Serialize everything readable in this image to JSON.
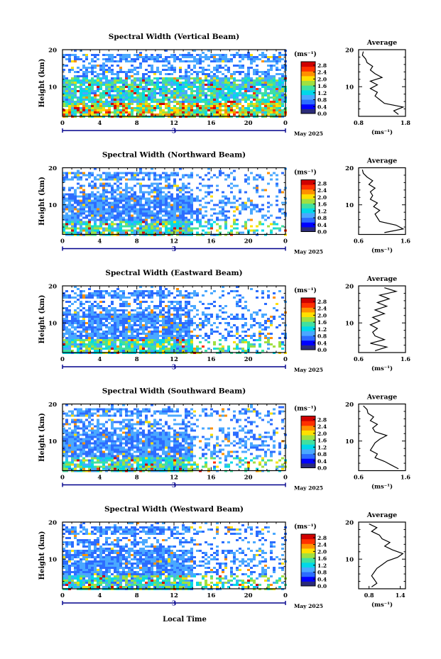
{
  "figure": {
    "xaxis_label": "Local Time"
  },
  "colorbar": {
    "unit": "(ms⁻¹)",
    "ticks": [
      "0.0",
      "0.4",
      "0.8",
      "1.2",
      "1.6",
      "2.0",
      "2.4",
      "2.8"
    ],
    "colors": [
      "#2b2b7a",
      "#0000ff",
      "#2c6cff",
      "#4aa8ff",
      "#00d8e8",
      "#40e0a0",
      "#a0e040",
      "#ffe000",
      "#ff9000",
      "#ff3000",
      "#d00000"
    ]
  },
  "chart_data": [
    {
      "type": "heatmap",
      "title": "Spectral Width (Vertical Beam)",
      "xlabel": "",
      "ylabel": "Height (km)",
      "xlim": [
        0,
        24
      ],
      "xticks": [
        "0",
        "4",
        "8",
        "12",
        "16",
        "20",
        "0"
      ],
      "ylim": [
        2,
        20
      ],
      "yticks": [
        "10",
        "20"
      ],
      "date_label": "May 2025",
      "day_label": "3",
      "zlabel": "(ms⁻¹)",
      "zlim": [
        0,
        3.0
      ],
      "profile": {
        "title": "Average",
        "xlabel": "(ms⁻¹)",
        "xticks": [
          "0.8",
          "1.8"
        ],
        "xlim": [
          0.8,
          1.8
        ],
        "points": [
          [
            1.65,
            2.5
          ],
          [
            1.55,
            3.5
          ],
          [
            1.75,
            4.5
          ],
          [
            1.35,
            5.5
          ],
          [
            1.25,
            6.5
          ],
          [
            1.15,
            7.5
          ],
          [
            1.2,
            8.5
          ],
          [
            1.05,
            9.5
          ],
          [
            1.2,
            10.5
          ],
          [
            1.05,
            11.5
          ],
          [
            1.3,
            12.5
          ],
          [
            1.15,
            13.5
          ],
          [
            1.05,
            14.5
          ],
          [
            1.1,
            15.5
          ],
          [
            0.98,
            16.5
          ],
          [
            0.95,
            17.5
          ],
          [
            0.88,
            18.5
          ],
          [
            0.9,
            19.5
          ]
        ]
      }
    },
    {
      "type": "heatmap",
      "title": "Spectral Width (Northward Beam)",
      "xlabel": "",
      "ylabel": "Height (km)",
      "xlim": [
        0,
        24
      ],
      "xticks": [
        "0",
        "4",
        "8",
        "12",
        "16",
        "20",
        "0"
      ],
      "ylim": [
        2,
        20
      ],
      "yticks": [
        "10",
        "20"
      ],
      "date_label": "May 2025",
      "day_label": "3",
      "zlabel": "(ms⁻¹)",
      "zlim": [
        0,
        3.0
      ],
      "profile": {
        "title": "Average",
        "xlabel": "(ms⁻¹)",
        "xticks": [
          "0.6",
          "1.6"
        ],
        "xlim": [
          0.6,
          1.6
        ],
        "points": [
          [
            1.15,
            2.5
          ],
          [
            1.55,
            3.5
          ],
          [
            1.4,
            4.5
          ],
          [
            1.05,
            5.5
          ],
          [
            1.0,
            6.5
          ],
          [
            0.95,
            7.5
          ],
          [
            1.05,
            8.5
          ],
          [
            0.92,
            9.5
          ],
          [
            1.0,
            10.5
          ],
          [
            0.85,
            11.5
          ],
          [
            0.9,
            12.5
          ],
          [
            0.85,
            13.5
          ],
          [
            0.95,
            14.5
          ],
          [
            0.82,
            15.5
          ],
          [
            0.9,
            16.5
          ],
          [
            0.78,
            17.5
          ],
          [
            0.7,
            18.5
          ],
          [
            0.68,
            19.5
          ]
        ]
      }
    },
    {
      "type": "heatmap",
      "title": "Spectral Width (Eastward Beam)",
      "xlabel": "",
      "ylabel": "Height (km)",
      "xlim": [
        0,
        24
      ],
      "xticks": [
        "0",
        "4",
        "8",
        "12",
        "16",
        "20",
        "0"
      ],
      "ylim": [
        2,
        20
      ],
      "yticks": [
        "10",
        "20"
      ],
      "date_label": "May 2025",
      "day_label": "3",
      "zlabel": "(ms⁻¹)",
      "zlim": [
        0,
        3.0
      ],
      "profile": {
        "title": "Average",
        "xlabel": "(ms⁻¹)",
        "xticks": [
          "0.6",
          "1.6"
        ],
        "xlim": [
          0.6,
          1.6
        ],
        "points": [
          [
            0.95,
            2.5
          ],
          [
            1.2,
            3.5
          ],
          [
            0.85,
            4.5
          ],
          [
            1.15,
            5.5
          ],
          [
            0.95,
            6.5
          ],
          [
            0.9,
            7.5
          ],
          [
            1.0,
            8.5
          ],
          [
            0.85,
            9.5
          ],
          [
            1.05,
            10.5
          ],
          [
            0.9,
            11.5
          ],
          [
            1.15,
            12.5
          ],
          [
            0.95,
            13.5
          ],
          [
            1.2,
            14.5
          ],
          [
            1.0,
            15.5
          ],
          [
            1.25,
            16.5
          ],
          [
            1.05,
            17.5
          ],
          [
            1.4,
            18.5
          ],
          [
            1.15,
            19.5
          ]
        ]
      }
    },
    {
      "type": "heatmap",
      "title": "Spectral Width (Southward Beam)",
      "xlabel": "",
      "ylabel": "Height (km)",
      "xlim": [
        0,
        24
      ],
      "xticks": [
        "0",
        "4",
        "8",
        "12",
        "16",
        "20",
        "0"
      ],
      "ylim": [
        2,
        20
      ],
      "yticks": [
        "10",
        "20"
      ],
      "date_label": "May 2025",
      "day_label": "3",
      "zlabel": "(ms⁻¹)",
      "zlim": [
        0,
        3.0
      ],
      "profile": {
        "title": "Average",
        "xlabel": "(ms⁻¹)",
        "xticks": [
          "0.6",
          "1.6"
        ],
        "xlim": [
          0.6,
          1.6
        ],
        "points": [
          [
            1.45,
            2.5
          ],
          [
            1.3,
            3.5
          ],
          [
            1.15,
            4.5
          ],
          [
            0.95,
            5.5
          ],
          [
            1.0,
            6.5
          ],
          [
            0.85,
            7.5
          ],
          [
            0.9,
            8.5
          ],
          [
            0.95,
            9.5
          ],
          [
            1.05,
            10.5
          ],
          [
            1.2,
            11.5
          ],
          [
            0.95,
            12.5
          ],
          [
            0.9,
            13.5
          ],
          [
            1.0,
            14.5
          ],
          [
            0.85,
            15.5
          ],
          [
            0.92,
            16.5
          ],
          [
            0.8,
            17.5
          ],
          [
            0.78,
            18.5
          ],
          [
            0.7,
            19.5
          ]
        ]
      }
    },
    {
      "type": "heatmap",
      "title": "Spectral Width (Westward Beam)",
      "xlabel": "Local Time",
      "ylabel": "Height (km)",
      "xlim": [
        0,
        24
      ],
      "xticks": [
        "0",
        "4",
        "8",
        "12",
        "16",
        "20",
        "0"
      ],
      "ylim": [
        2,
        20
      ],
      "yticks": [
        "10",
        "20"
      ],
      "date_label": "May 2025",
      "day_label": "3",
      "zlabel": "(ms⁻¹)",
      "zlim": [
        0,
        3.0
      ],
      "profile": {
        "title": "Average",
        "xlabel": "(ms⁻¹)",
        "xticks": [
          "0.8",
          "1.4"
        ],
        "xlim": [
          0.6,
          1.5
        ],
        "points": [
          [
            0.85,
            2.5
          ],
          [
            0.95,
            3.5
          ],
          [
            0.9,
            4.5
          ],
          [
            0.85,
            5.5
          ],
          [
            0.9,
            6.5
          ],
          [
            0.95,
            7.5
          ],
          [
            1.05,
            8.5
          ],
          [
            1.15,
            9.5
          ],
          [
            1.35,
            10.5
          ],
          [
            1.45,
            11.5
          ],
          [
            1.25,
            12.5
          ],
          [
            1.1,
            13.5
          ],
          [
            1.2,
            14.5
          ],
          [
            1.05,
            15.5
          ],
          [
            1.0,
            16.5
          ],
          [
            0.85,
            17.5
          ],
          [
            0.95,
            18.5
          ],
          [
            0.8,
            19.5
          ]
        ]
      }
    }
  ]
}
